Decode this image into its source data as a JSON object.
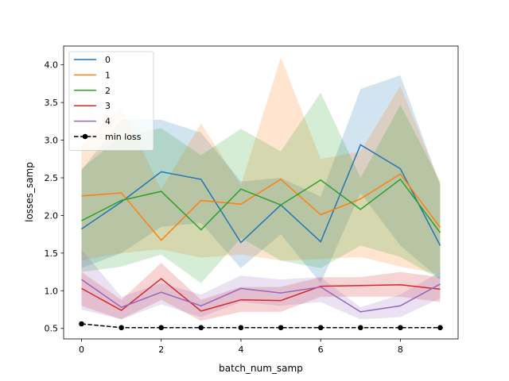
{
  "chart_data": {
    "type": "line",
    "xlabel": "batch_num_samp",
    "ylabel": "losses_samp",
    "xlim": [
      -0.45,
      9.45
    ],
    "ylim": [
      0.36,
      4.25
    ],
    "xticks": [
      0,
      2,
      4,
      6,
      8
    ],
    "yticks": [
      0.5,
      1.0,
      1.5,
      2.0,
      2.5,
      3.0,
      3.5,
      4.0
    ],
    "ytick_labels": [
      "0.5",
      "1.0",
      "1.5",
      "2.0",
      "2.5",
      "3.0",
      "3.5",
      "4.0"
    ],
    "legend_location": "upper left",
    "x": [
      0,
      1,
      2,
      3,
      4,
      5,
      6,
      7,
      8,
      9
    ],
    "series": [
      {
        "name": "0",
        "color": "#1f77b4",
        "values": [
          1.82,
          2.18,
          2.58,
          2.48,
          1.64,
          2.14,
          1.65,
          2.94,
          2.62,
          1.6
        ],
        "lower": [
          1.3,
          1.5,
          1.85,
          1.9,
          1.3,
          1.75,
          1.1,
          2.3,
          1.6,
          1.15
        ],
        "upper": [
          2.6,
          3.27,
          3.27,
          3.1,
          2.45,
          2.5,
          2.25,
          3.68,
          3.86,
          2.4
        ]
      },
      {
        "name": "1",
        "color": "#ff7f0e",
        "values": [
          2.26,
          2.3,
          1.67,
          2.2,
          2.15,
          2.48,
          2.01,
          2.22,
          2.55,
          1.84
        ],
        "lower": [
          1.4,
          1.5,
          1.55,
          1.44,
          1.48,
          1.4,
          1.42,
          1.45,
          1.32,
          1.22
        ],
        "upper": [
          2.95,
          3.44,
          2.35,
          3.22,
          2.4,
          4.1,
          2.75,
          2.85,
          3.72,
          2.42
        ]
      },
      {
        "name": "2",
        "color": "#2ca02c",
        "values": [
          1.93,
          2.2,
          2.32,
          1.81,
          2.35,
          2.14,
          2.47,
          2.08,
          2.48,
          1.77
        ],
        "lower": [
          1.25,
          1.32,
          1.48,
          1.1,
          1.7,
          1.4,
          1.3,
          1.6,
          1.45,
          1.15
        ],
        "upper": [
          2.62,
          3.05,
          3.16,
          2.8,
          3.15,
          2.85,
          3.63,
          2.5,
          3.47,
          2.45
        ]
      },
      {
        "name": "3",
        "color": "#d62728",
        "values": [
          1.03,
          0.74,
          1.16,
          0.73,
          0.88,
          0.87,
          1.06,
          1.07,
          1.08,
          1.02
        ],
        "lower": [
          0.8,
          0.62,
          0.88,
          0.6,
          0.72,
          0.72,
          0.92,
          0.92,
          0.92,
          0.85
        ],
        "upper": [
          1.25,
          0.88,
          1.37,
          0.88,
          1.05,
          1.05,
          1.18,
          1.18,
          1.25,
          1.18
        ]
      },
      {
        "name": "4",
        "color": "#9467bd",
        "values": [
          1.15,
          0.78,
          0.98,
          0.8,
          1.03,
          0.97,
          1.05,
          0.72,
          0.8,
          1.09
        ],
        "lower": [
          0.75,
          0.62,
          0.82,
          0.65,
          0.85,
          0.8,
          0.85,
          0.62,
          0.65,
          0.9
        ],
        "upper": [
          1.55,
          0.92,
          1.1,
          0.95,
          1.2,
          1.15,
          1.18,
          0.78,
          0.95,
          1.25
        ]
      },
      {
        "name": "min loss",
        "color": "#000000",
        "dashed": true,
        "markers": true,
        "values": [
          0.56,
          0.51,
          0.51,
          0.51,
          0.51,
          0.51,
          0.51,
          0.51,
          0.51,
          0.51
        ]
      }
    ]
  }
}
